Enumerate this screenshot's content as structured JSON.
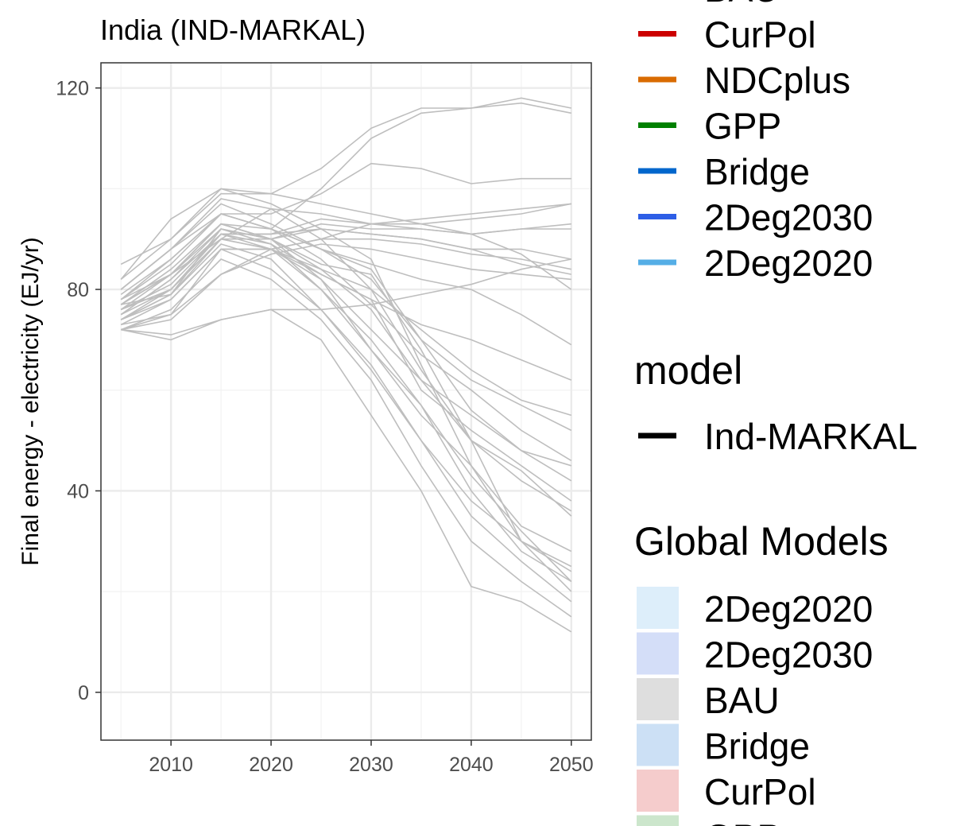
{
  "chart_data": {
    "type": "line",
    "title": "India (IND-MARKAL)",
    "xlabel": "",
    "ylabel": "Final energy - electricity (EJ/yr)",
    "xlim": [
      2003,
      2052
    ],
    "ylim": [
      -9.5,
      125
    ],
    "x_ticks": [
      2010,
      2020,
      2030,
      2040,
      2050
    ],
    "y_ticks": [
      0,
      40,
      80,
      120
    ],
    "grid": true,
    "line_color": "#bebebe",
    "x": [
      2005,
      2010,
      2015,
      2020,
      2025,
      2030,
      2035,
      2040,
      2045,
      2050
    ],
    "series": [
      {
        "values": [
          85,
          90,
          99,
          99,
          97,
          95,
          93,
          91,
          92,
          93
        ]
      },
      {
        "values": [
          82,
          94,
          100,
          99,
          104,
          112,
          116,
          116,
          118,
          116
        ]
      },
      {
        "values": [
          78,
          83,
          93,
          92,
          100,
          110,
          115,
          116,
          117,
          115
        ]
      },
      {
        "values": [
          80,
          88,
          95,
          95,
          99,
          105,
          104,
          101,
          102,
          102
        ]
      },
      {
        "values": [
          76,
          80,
          91,
          91,
          94,
          93,
          94,
          95,
          96,
          97
        ]
      },
      {
        "values": [
          77,
          79,
          92,
          90,
          93,
          92,
          92,
          91,
          92,
          92
        ]
      },
      {
        "values": [
          74,
          79,
          90,
          90,
          92,
          91,
          90,
          88,
          88,
          86
        ]
      },
      {
        "values": [
          72,
          74,
          83,
          88,
          90,
          90,
          89,
          87,
          86,
          84
        ]
      },
      {
        "values": [
          72,
          75,
          83,
          87,
          89,
          88,
          86,
          84,
          83,
          82
        ]
      },
      {
        "values": [
          75,
          82,
          91,
          91,
          92,
          91,
          90,
          88,
          85,
          83
        ]
      },
      {
        "values": [
          72,
          71,
          74,
          76,
          76,
          77,
          79,
          81,
          84,
          86
        ]
      },
      {
        "values": [
          73,
          75,
          88,
          88,
          90,
          93,
          93,
          94,
          95,
          97
        ]
      },
      {
        "values": [
          77,
          83,
          90,
          96,
          95,
          93,
          92,
          91,
          87,
          80
        ]
      },
      {
        "values": [
          79,
          86,
          95,
          92,
          88,
          85,
          82,
          80,
          75,
          69
        ]
      },
      {
        "values": [
          75,
          80,
          91,
          89,
          83,
          78,
          73,
          70,
          66,
          62
        ]
      },
      {
        "values": [
          76,
          83,
          93,
          90,
          84,
          80,
          72,
          64,
          58,
          55
        ]
      },
      {
        "values": [
          80,
          88,
          97,
          93,
          88,
          82,
          70,
          62,
          57,
          52
        ]
      },
      {
        "values": [
          78,
          86,
          95,
          92,
          86,
          77,
          67,
          60,
          52,
          46
        ]
      },
      {
        "values": [
          74,
          80,
          90,
          88,
          82,
          72,
          62,
          55,
          48,
          42
        ]
      },
      {
        "values": [
          77,
          84,
          93,
          90,
          85,
          83,
          68,
          50,
          42,
          36
        ]
      },
      {
        "values": [
          73,
          78,
          88,
          88,
          84,
          76,
          62,
          50,
          44,
          35
        ]
      },
      {
        "values": [
          75,
          82,
          92,
          90,
          82,
          68,
          55,
          45,
          33,
          28
        ]
      },
      {
        "values": [
          80,
          88,
          98,
          96,
          90,
          80,
          64,
          50,
          30,
          25
        ]
      },
      {
        "values": [
          76,
          80,
          90,
          88,
          80,
          70,
          57,
          43,
          32,
          22
        ]
      },
      {
        "values": [
          82,
          90,
          100,
          97,
          92,
          86,
          65,
          45,
          30,
          20
        ]
      },
      {
        "values": [
          74,
          78,
          88,
          84,
          76,
          65,
          50,
          35,
          26,
          18
        ]
      },
      {
        "values": [
          72,
          76,
          86,
          82,
          74,
          62,
          45,
          30,
          22,
          15
        ]
      },
      {
        "values": [
          72,
          70,
          74,
          76,
          70,
          55,
          40,
          21,
          18,
          12
        ]
      },
      {
        "values": [
          77,
          83,
          92,
          89,
          80,
          68,
          57,
          40,
          28,
          22
        ]
      },
      {
        "values": [
          74,
          79,
          89,
          86,
          76,
          64,
          50,
          38,
          30,
          24
        ]
      },
      {
        "values": [
          76,
          81,
          91,
          88,
          83,
          78,
          60,
          52,
          45,
          38
        ]
      },
      {
        "values": [
          78,
          85,
          95,
          92,
          88,
          84,
          70,
          56,
          48,
          45
        ]
      }
    ]
  },
  "legend": {
    "scenario_items": [
      {
        "label": "BAU",
        "color": "#bebebe"
      },
      {
        "label": "CurPol",
        "color": "#cc0000"
      },
      {
        "label": "NDCplus",
        "color": "#d96b00"
      },
      {
        "label": "GPP",
        "color": "#008000"
      },
      {
        "label": "Bridge",
        "color": "#0066cc"
      },
      {
        "label": "2Deg2030",
        "color": "#2d5ee6"
      },
      {
        "label": "2Deg2020",
        "color": "#55aee6"
      }
    ],
    "model_title": "model",
    "model_items": [
      {
        "label": "Ind-MARKAL",
        "color": "#000000"
      }
    ],
    "global_title": "Global Models",
    "global_items": [
      {
        "label": "2Deg2020",
        "color": "#ddeefa"
      },
      {
        "label": "2Deg2030",
        "color": "#d4def8"
      },
      {
        "label": "BAU",
        "color": "#dedede"
      },
      {
        "label": "Bridge",
        "color": "#cce0f5"
      },
      {
        "label": "CurPol",
        "color": "#f5cccc"
      },
      {
        "label": "GPP",
        "color": "#cce6cc"
      }
    ]
  }
}
